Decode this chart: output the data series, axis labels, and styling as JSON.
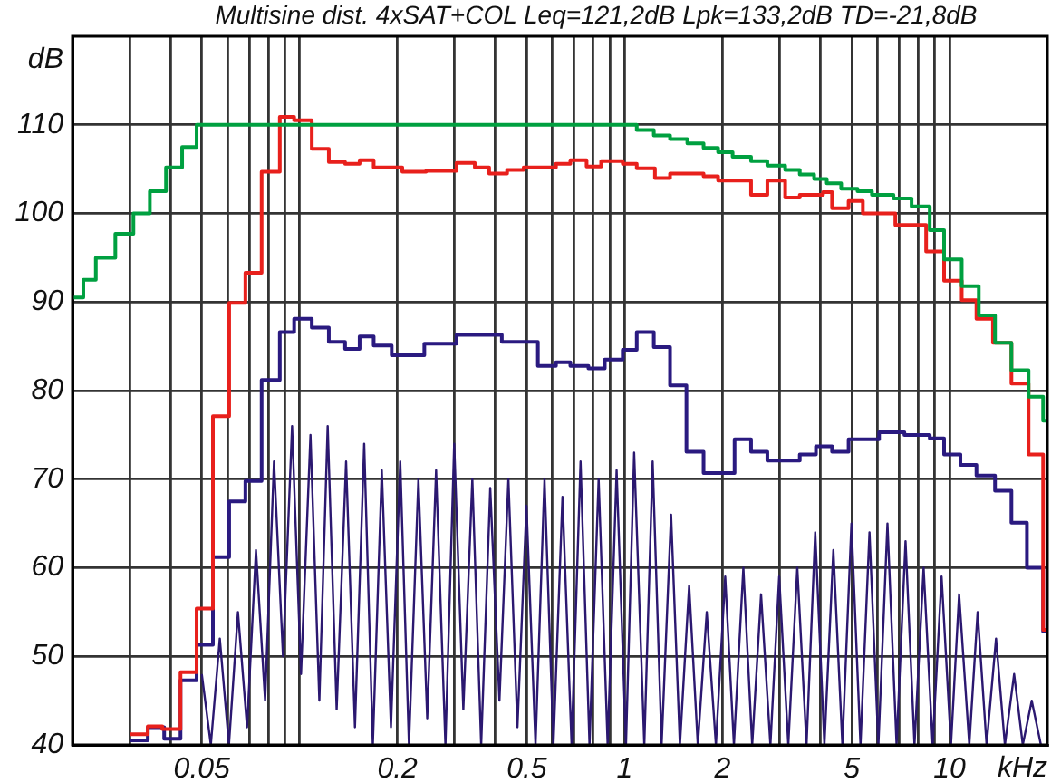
{
  "chart_data": {
    "type": "step",
    "title": "Multisine dist. 4xSAT+COL Leq=121,2dB Lpk=133,2dB TD=-21,8dB",
    "xlabel": "kHz",
    "ylabel": "dB",
    "log": "x",
    "grid": true,
    "legend": false,
    "xlim": [
      0.02,
      20
    ],
    "ylim": [
      40,
      120
    ],
    "xticks": [
      {
        "value": 0.03,
        "label": null
      },
      {
        "value": 0.04,
        "label": null
      },
      0.05,
      {
        "value": 0.06,
        "label": null
      },
      {
        "value": 0.07,
        "label": null
      },
      {
        "value": 0.08,
        "label": null
      },
      {
        "value": 0.09,
        "label": null
      },
      {
        "value": 0.1,
        "label": null
      },
      0.2,
      {
        "value": 0.3,
        "label": null
      },
      {
        "value": 0.4,
        "label": null
      },
      0.5,
      {
        "value": 0.6,
        "label": null
      },
      {
        "value": 0.7,
        "label": null
      },
      {
        "value": 0.8,
        "label": null
      },
      {
        "value": 0.9,
        "label": null
      },
      1,
      2,
      {
        "value": 3,
        "label": null
      },
      {
        "value": 4,
        "label": null
      },
      5,
      {
        "value": 6,
        "label": null
      },
      {
        "value": 7,
        "label": null
      },
      {
        "value": 8,
        "label": null
      },
      {
        "value": 9,
        "label": null
      },
      10
    ],
    "yticks": [
      40,
      50,
      60,
      70,
      80,
      90,
      100,
      110
    ],
    "series": [
      {
        "type": "line",
        "color": "#2b1870",
        "x": [
          0.05,
          0.0533,
          0.0568,
          0.0606,
          0.0646,
          0.0689,
          0.0734,
          0.0783,
          0.0834,
          0.0889,
          0.0948,
          0.101,
          0.108,
          0.115,
          0.122,
          0.13,
          0.139,
          0.148,
          0.158,
          0.168,
          0.179,
          0.191,
          0.204,
          0.217,
          0.232,
          0.247,
          0.263,
          0.281,
          0.299,
          0.319,
          0.34,
          0.362,
          0.386,
          0.412,
          0.439,
          0.468,
          0.499,
          0.532,
          0.567,
          0.604,
          0.644,
          0.687,
          0.732,
          0.78,
          0.832,
          0.887,
          0.945,
          1.01,
          1.07,
          1.15,
          1.22,
          1.3,
          1.39,
          1.48,
          1.58,
          1.68,
          1.79,
          1.91,
          2.04,
          2.17,
          2.32,
          2.47,
          2.63,
          2.81,
          2.99,
          3.19,
          3.4,
          3.63,
          3.86,
          4.12,
          4.39,
          4.68,
          4.99,
          5.32,
          5.67,
          6.04,
          6.44,
          6.87,
          7.32,
          7.8,
          8.32,
          8.87,
          9.45,
          10.1,
          10.7,
          11.5,
          12.2,
          13.0,
          13.9,
          14.8,
          15.8,
          16.8,
          17.9,
          19.1
        ],
        "values": [
          48,
          40,
          52,
          40,
          55,
          42,
          62,
          45,
          72,
          50,
          76,
          48,
          75,
          45,
          76,
          44,
          72,
          42,
          74,
          40,
          71,
          42,
          72,
          40,
          70,
          43,
          71,
          40,
          74,
          44,
          70,
          40,
          69,
          45,
          70,
          42,
          67,
          40,
          70,
          40,
          68,
          40,
          72,
          40,
          70,
          40,
          71,
          40,
          73,
          40,
          72,
          40,
          66,
          40,
          58,
          40,
          55,
          40,
          59,
          40,
          60,
          40,
          57,
          40,
          59,
          40,
          60,
          40,
          64,
          40,
          62,
          40,
          65,
          40,
          64,
          40,
          65,
          40,
          63,
          40,
          60,
          40,
          59,
          40,
          57,
          40,
          55,
          40,
          52,
          40,
          48,
          40,
          45,
          40
        ]
      },
      {
        "color": "#00a040",
        "x": [
          0.02,
          0.0216,
          0.0236,
          0.0271,
          0.0308,
          0.0346,
          0.0388,
          0.0435,
          0.0482,
          1.09,
          1.23,
          1.38,
          1.56,
          1.75,
          1.94,
          2.15,
          2.45,
          2.75,
          3.12,
          3.46,
          3.83,
          4.19,
          4.64,
          5.21,
          5.77,
          6.72,
          7.64,
          8.69,
          9.62,
          10.9,
          12.3,
          13.8,
          15.5,
          17.5,
          19.4,
          20
        ],
        "values": [
          90.5,
          92.5,
          95,
          97.7,
          100,
          102.5,
          105.2,
          107.5,
          110,
          109.4,
          108.8,
          108.4,
          107.9,
          107.4,
          106.9,
          106.4,
          105.9,
          105.4,
          104.9,
          104.4,
          103.9,
          103.4,
          102.8,
          102.5,
          102.1,
          101.7,
          100.8,
          98.1,
          94.8,
          91.8,
          88.5,
          85.4,
          82.3,
          79.3,
          76.6,
          76.6
        ]
      },
      {
        "color": "#e8201c",
        "x": [
          0.0301,
          0.0341,
          0.0378,
          0.043,
          0.0482,
          0.0541,
          0.0607,
          0.0681,
          0.0764,
          0.0869,
          0.0962,
          0.109,
          0.123,
          0.138,
          0.153,
          0.169,
          0.207,
          0.245,
          0.304,
          0.346,
          0.383,
          0.435,
          0.489,
          0.615,
          0.681,
          0.764,
          0.847,
          0.987,
          1.09,
          1.24,
          1.38,
          1.75,
          1.94,
          2.45,
          2.75,
          3.12,
          3.46,
          4.08,
          4.35,
          4.89,
          5.41,
          6.81,
          8.47,
          9.62,
          10.9,
          12.1,
          13.6,
          15.5,
          17.5,
          19.4,
          20
        ],
        "values": [
          41.2,
          42.1,
          41.8,
          48.2,
          55.4,
          77.1,
          89.9,
          93.3,
          104.7,
          110.9,
          110.5,
          107.3,
          105.8,
          105.6,
          106.0,
          105.2,
          104.7,
          104.8,
          105.7,
          105.2,
          104.5,
          104.9,
          105.2,
          105.6,
          106.0,
          105.3,
          105.9,
          105.6,
          105.1,
          104.0,
          104.5,
          104.2,
          103.7,
          102.1,
          103.7,
          101.8,
          102.1,
          102.4,
          100.6,
          101.4,
          100.0,
          98.7,
          95.7,
          92.4,
          90.2,
          88.1,
          85.4,
          80.8,
          72.8,
          53.0,
          53.0
        ]
      },
      {
        "color": "#2a1a80",
        "x": [
          0.0301,
          0.0341,
          0.0383,
          0.043,
          0.0482,
          0.0541,
          0.0607,
          0.0681,
          0.0764,
          0.0869,
          0.0962,
          0.109,
          0.123,
          0.138,
          0.153,
          0.169,
          0.192,
          0.242,
          0.304,
          0.419,
          0.541,
          0.615,
          0.681,
          0.774,
          0.869,
          0.987,
          1.09,
          1.23,
          1.38,
          1.55,
          1.75,
          2.18,
          2.45,
          2.75,
          3.46,
          3.88,
          4.35,
          4.89,
          6.07,
          7.26,
          8.69,
          9.62,
          10.8,
          12.1,
          13.8,
          15.5,
          17.3,
          19.4,
          20
        ],
        "values": [
          40.5,
          42.0,
          40.7,
          47.3,
          51.3,
          61.2,
          67.5,
          69.8,
          81.2,
          86.6,
          88.1,
          87.1,
          85.5,
          84.7,
          86.1,
          85.1,
          84.0,
          85.3,
          86.3,
          85.5,
          82.8,
          83.2,
          82.8,
          82.5,
          83.5,
          84.6,
          86.6,
          84.9,
          80.6,
          73.1,
          70.7,
          74.5,
          73.1,
          72.1,
          72.8,
          73.7,
          73.1,
          74.5,
          75.3,
          75.0,
          74.6,
          72.8,
          71.6,
          70.4,
          68.7,
          65.1,
          60.0,
          52.8,
          52.8
        ]
      }
    ]
  }
}
